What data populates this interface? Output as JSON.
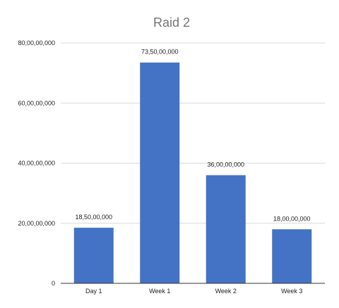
{
  "chart_data": {
    "type": "bar",
    "title": "Raid 2",
    "xlabel": "",
    "ylabel": "",
    "categories": [
      "Day 1",
      "Week 1",
      "Week 2",
      "Week 3"
    ],
    "series": [
      {
        "values": [
          185000000,
          735000000,
          360000000,
          180000000
        ],
        "data_labels": [
          "18,50,00,000",
          "73,50,00,000",
          "36,00,00,000",
          "18,00,00,000"
        ]
      }
    ],
    "ylim": [
      0,
      800000000
    ],
    "yticks": [
      0,
      200000000,
      400000000,
      600000000,
      800000000
    ],
    "ytick_labels": [
      "0",
      "20,00,00,000",
      "40,00,00,000",
      "60,00,00,000",
      "80,00,00,000"
    ],
    "grid": true,
    "legend": "none",
    "colors": {
      "bar": "#4472c4",
      "grid": "#d9d9d9",
      "axis": "#333333",
      "title": "#757575"
    }
  }
}
